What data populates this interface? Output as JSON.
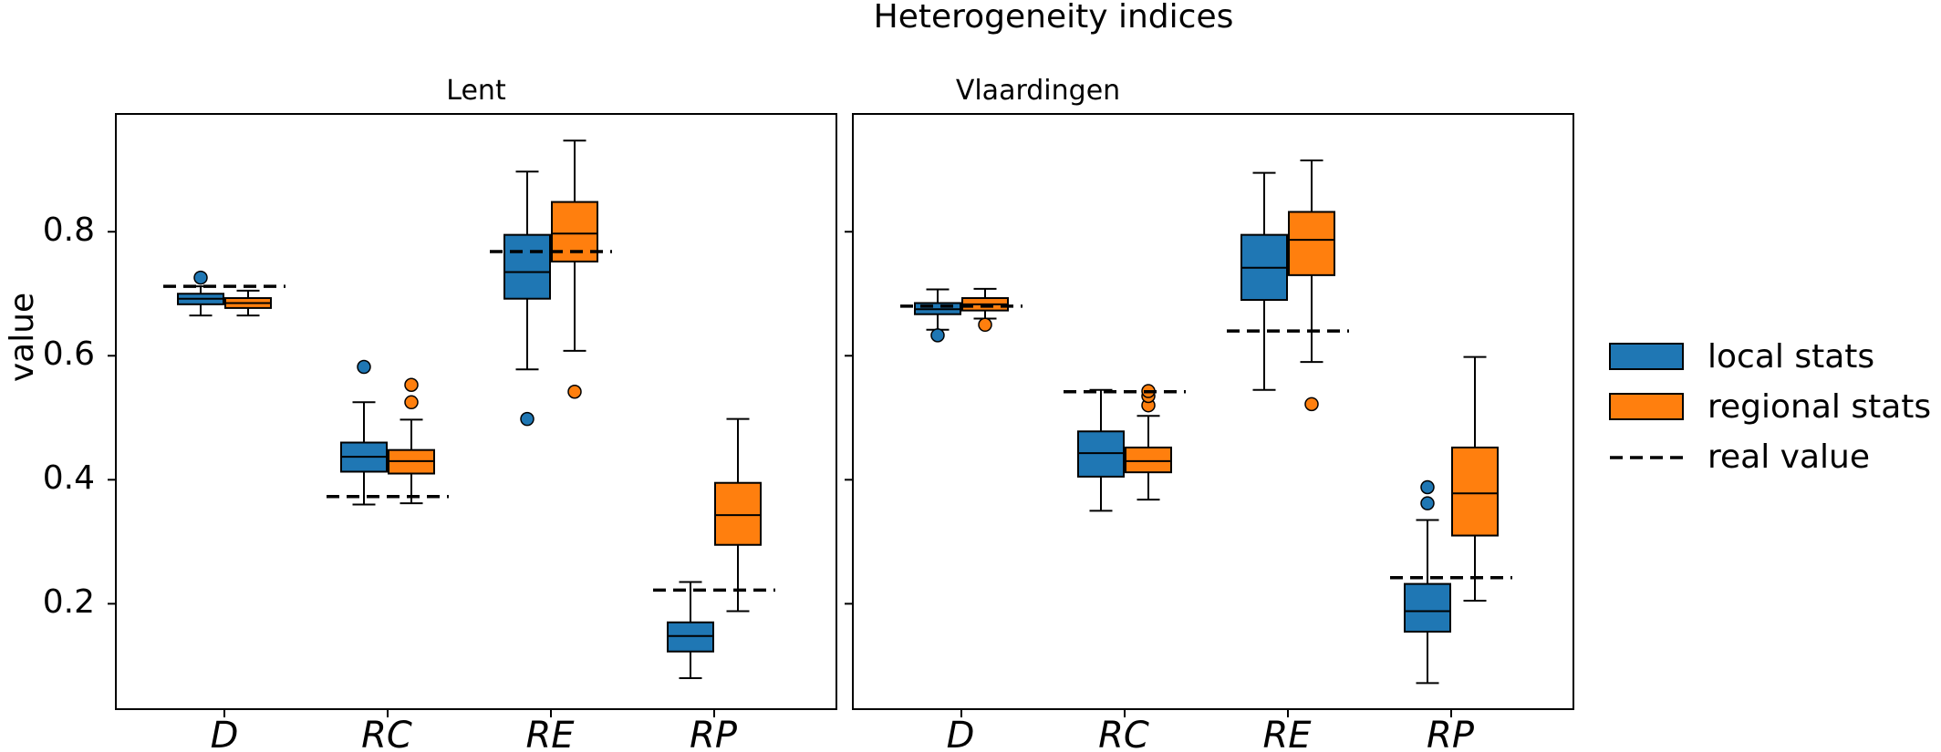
{
  "chart_data": {
    "type": "box",
    "title": "Heterogeneity indices",
    "ylabel": "value",
    "categories": [
      "D",
      "RC",
      "RE",
      "RP"
    ],
    "ylim": [
      0.03,
      0.99
    ],
    "yticks": [
      "0.2",
      "0.4",
      "0.6",
      "0.8"
    ],
    "legend": {
      "placement": "right",
      "entries": [
        "local stats",
        "regional stats",
        "real value"
      ]
    },
    "colors": {
      "local": "#1f77b4",
      "regional": "#ff7f0e",
      "real": "#000000"
    },
    "panels": [
      {
        "title": "Lent",
        "series": [
          {
            "name": "local stats",
            "boxes": [
              {
                "whislo": 0.665,
                "q1": 0.683,
                "med": 0.692,
                "q3": 0.7,
                "whishi": 0.712,
                "fliers": [
                  0.726
                ]
              },
              {
                "whislo": 0.36,
                "q1": 0.413,
                "med": 0.437,
                "q3": 0.46,
                "whishi": 0.525,
                "fliers": [
                  0.582
                ]
              },
              {
                "whislo": 0.578,
                "q1": 0.692,
                "med": 0.735,
                "q3": 0.795,
                "whishi": 0.897,
                "fliers": [
                  0.498
                ]
              },
              {
                "whislo": 0.08,
                "q1": 0.123,
                "med": 0.148,
                "q3": 0.17,
                "whishi": 0.235,
                "fliers": []
              }
            ]
          },
          {
            "name": "regional stats",
            "boxes": [
              {
                "whislo": 0.665,
                "q1": 0.677,
                "med": 0.685,
                "q3": 0.693,
                "whishi": 0.705,
                "fliers": []
              },
              {
                "whislo": 0.362,
                "q1": 0.41,
                "med": 0.43,
                "q3": 0.448,
                "whishi": 0.497,
                "fliers": [
                  0.525,
                  0.553
                ]
              },
              {
                "whislo": 0.608,
                "q1": 0.752,
                "med": 0.797,
                "q3": 0.848,
                "whishi": 0.947,
                "fliers": [
                  0.542
                ]
              },
              {
                "whislo": 0.188,
                "q1": 0.295,
                "med": 0.343,
                "q3": 0.395,
                "whishi": 0.498,
                "fliers": []
              }
            ]
          }
        ],
        "real_values": [
          0.712,
          0.373,
          0.768,
          0.222
        ]
      },
      {
        "title": "Vlaardingen",
        "series": [
          {
            "name": "local stats",
            "boxes": [
              {
                "whislo": 0.642,
                "q1": 0.667,
                "med": 0.675,
                "q3": 0.685,
                "whishi": 0.707,
                "fliers": [
                  0.633
                ]
              },
              {
                "whislo": 0.35,
                "q1": 0.405,
                "med": 0.443,
                "q3": 0.478,
                "whishi": 0.545,
                "fliers": []
              },
              {
                "whislo": 0.545,
                "q1": 0.69,
                "med": 0.742,
                "q3": 0.795,
                "whishi": 0.895,
                "fliers": []
              },
              {
                "whislo": 0.072,
                "q1": 0.155,
                "med": 0.188,
                "q3": 0.232,
                "whishi": 0.335,
                "fliers": [
                  0.362,
                  0.388
                ]
              }
            ]
          },
          {
            "name": "regional stats",
            "boxes": [
              {
                "whislo": 0.66,
                "q1": 0.673,
                "med": 0.683,
                "q3": 0.693,
                "whishi": 0.708,
                "fliers": [
                  0.65
                ]
              },
              {
                "whislo": 0.368,
                "q1": 0.412,
                "med": 0.43,
                "q3": 0.452,
                "whishi": 0.503,
                "fliers": [
                  0.52,
                  0.535,
                  0.543
                ]
              },
              {
                "whislo": 0.59,
                "q1": 0.73,
                "med": 0.787,
                "q3": 0.832,
                "whishi": 0.915,
                "fliers": [
                  0.522
                ]
              },
              {
                "whislo": 0.205,
                "q1": 0.31,
                "med": 0.378,
                "q3": 0.452,
                "whishi": 0.598,
                "fliers": []
              }
            ]
          }
        ],
        "real_values": [
          0.68,
          0.542,
          0.64,
          0.242
        ]
      }
    ]
  }
}
